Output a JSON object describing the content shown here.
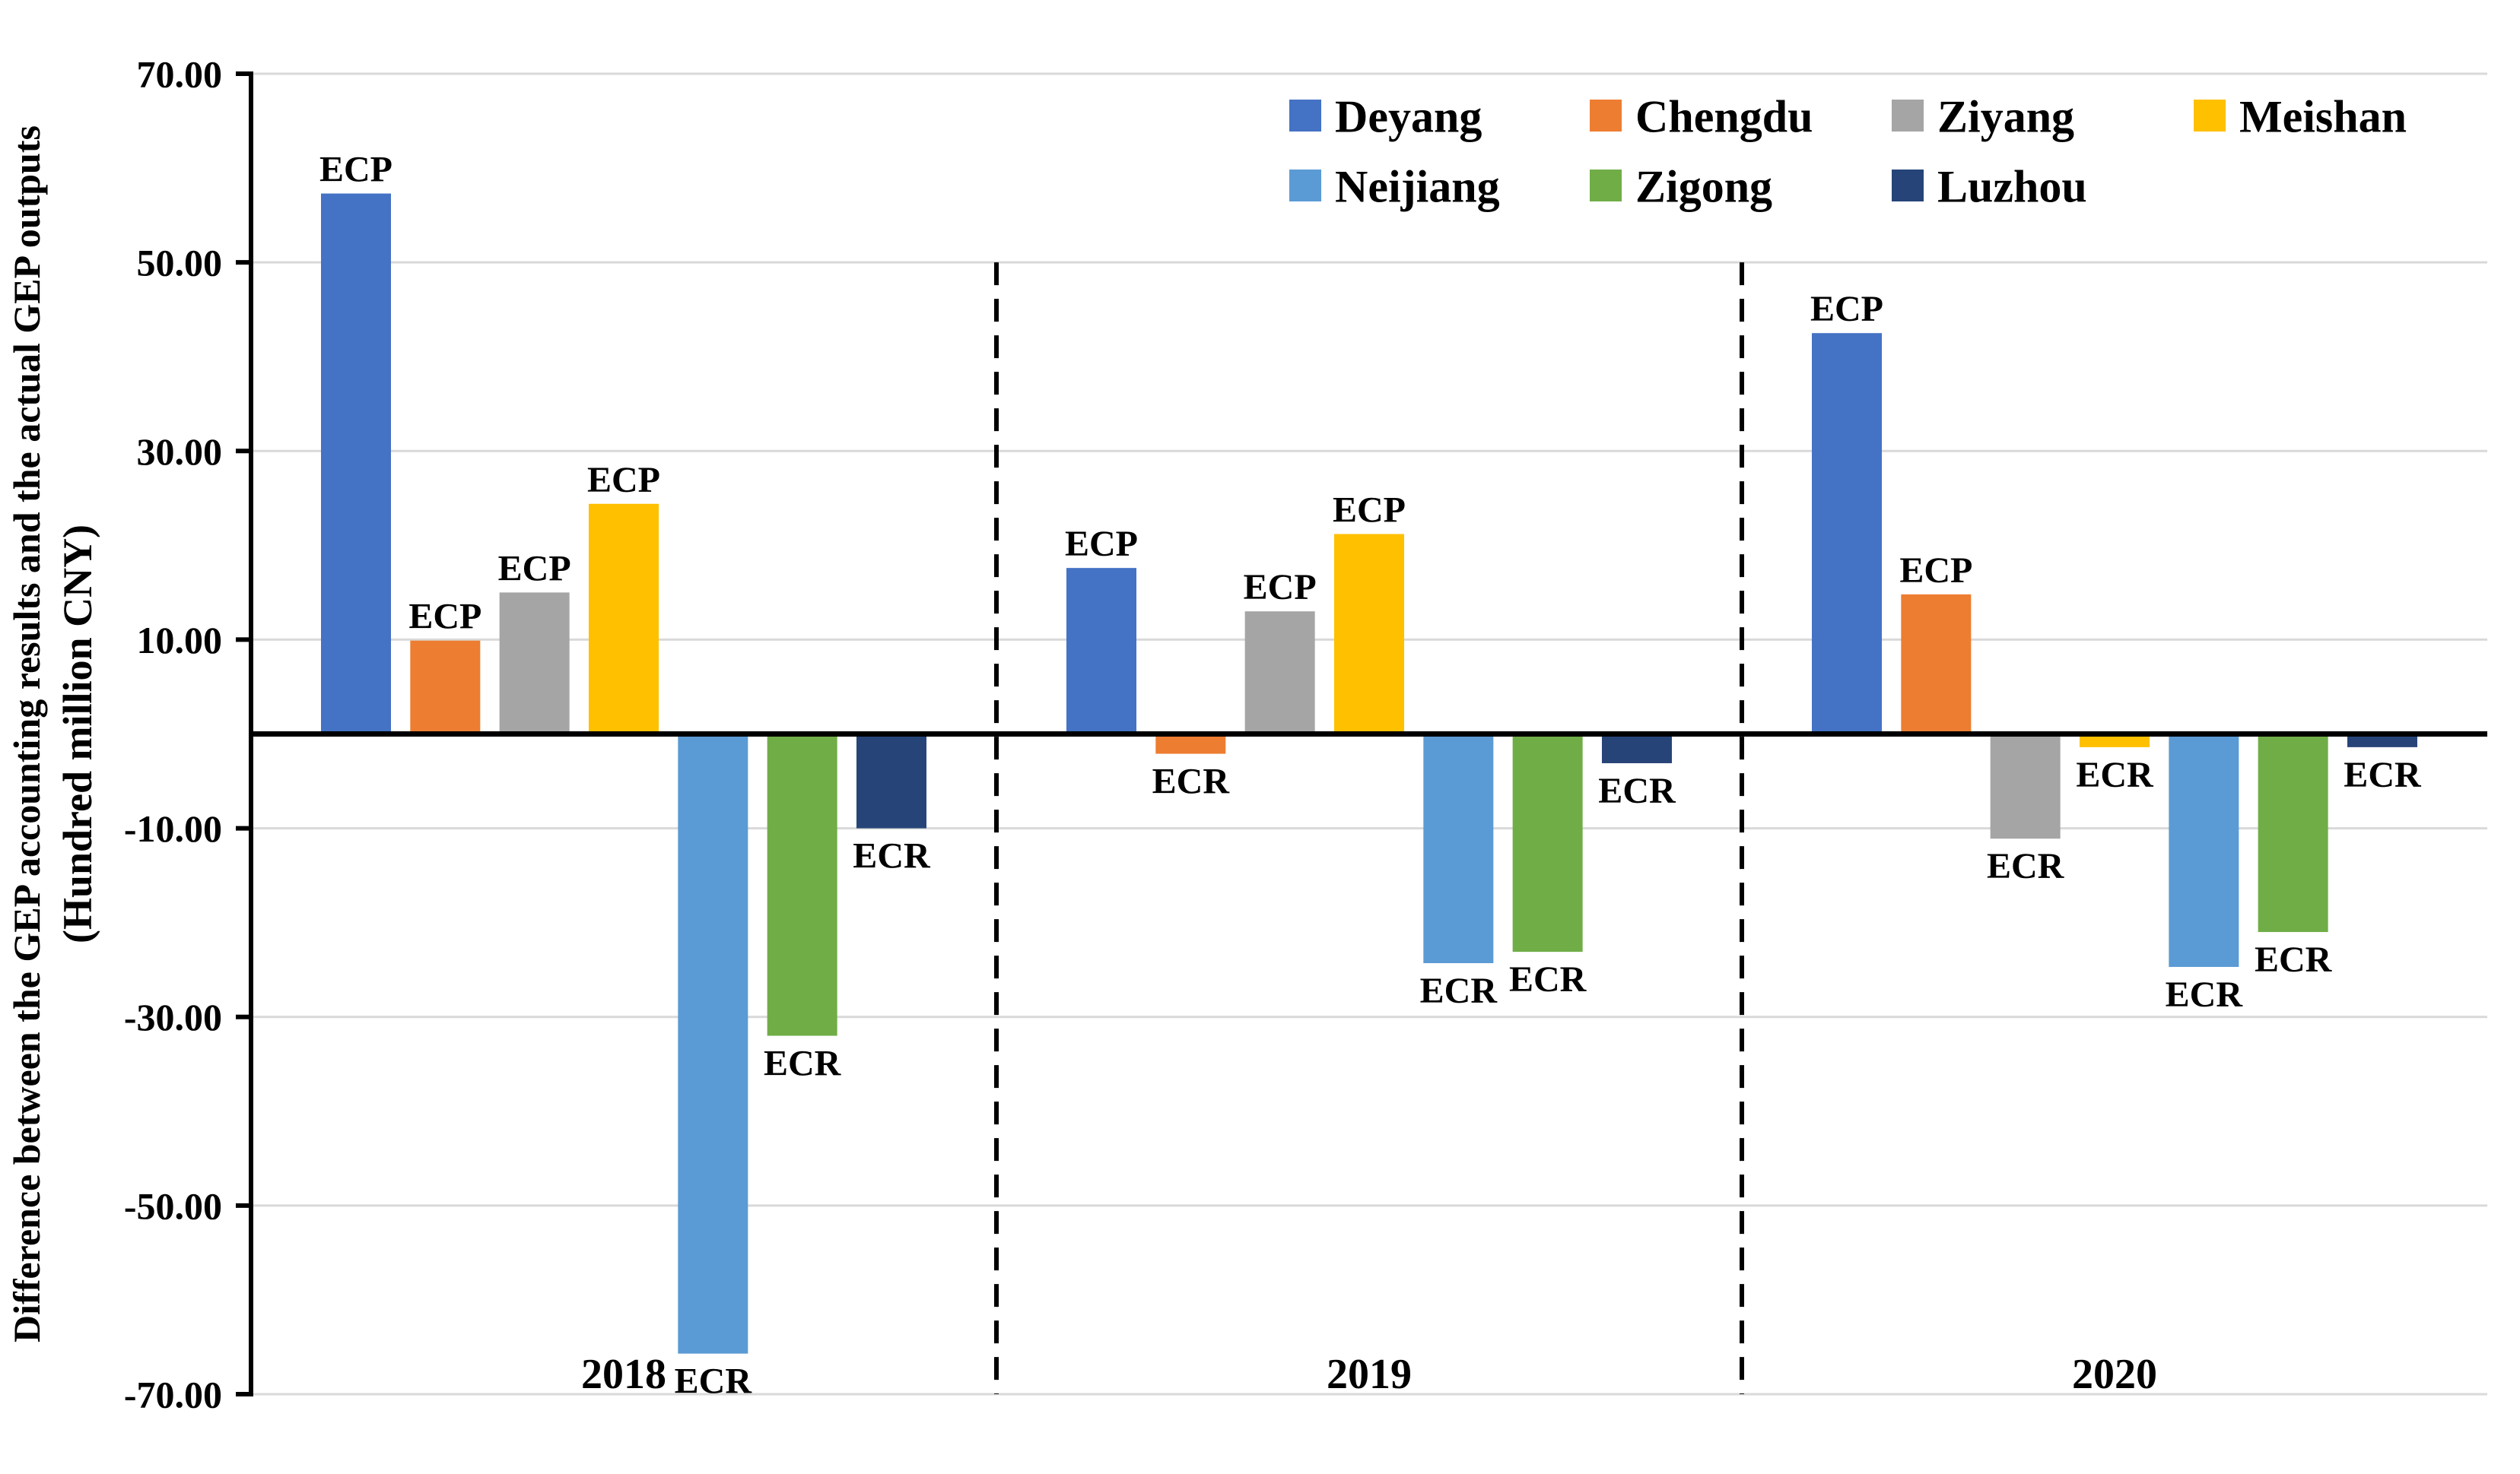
{
  "chart_data": {
    "type": "bar",
    "title": "",
    "ylabel_line1": "Difference between the GEP accounting results and the actual GEP outputs",
    "ylabel_line2": "(Hundred million CNY)",
    "ylim": [
      -70,
      70
    ],
    "yticks": [
      70,
      50,
      30,
      10,
      -10,
      -30,
      -50,
      -70
    ],
    "ytick_labels": [
      "70.00",
      "50.00",
      "30.00",
      "10.00",
      "-10.00",
      "-30.00",
      "-50.00",
      "-70.00"
    ],
    "grid": true,
    "gridline_color": "#d9d9d9",
    "axis_color": "#000000",
    "groups": [
      "2018",
      "2019",
      "2020"
    ],
    "group_separator_style": "dashed-vertical-line",
    "annotation_positive": "ECP",
    "annotation_negative": "ECR",
    "series": [
      {
        "name": "Deyang",
        "color": "#4472C4",
        "values": [
          57.3,
          17.6,
          42.5
        ]
      },
      {
        "name": "Chengdu",
        "color": "#ED7D31",
        "values": [
          9.9,
          -2.1,
          14.8
        ]
      },
      {
        "name": "Ziyang",
        "color": "#A5A5A5",
        "values": [
          15.0,
          13.0,
          -11.1
        ]
      },
      {
        "name": "Meishan",
        "color": "#FFC000",
        "values": [
          24.4,
          21.2,
          -1.4
        ]
      },
      {
        "name": "Neijiang",
        "color": "#5B9BD5",
        "values": [
          -65.7,
          -24.3,
          -24.7
        ]
      },
      {
        "name": "Zigong",
        "color": "#70AD47",
        "values": [
          -32.0,
          -23.1,
          -21.0
        ]
      },
      {
        "name": "Luzhou",
        "color": "#264478",
        "values": [
          -10.0,
          -3.1,
          -1.4
        ]
      }
    ],
    "legend": {
      "position": "top-right",
      "rows": [
        [
          "Deyang",
          "Chengdu",
          "Ziyang",
          "Meishan"
        ],
        [
          "Neijiang",
          "Zigong",
          "Luzhou"
        ]
      ]
    }
  }
}
